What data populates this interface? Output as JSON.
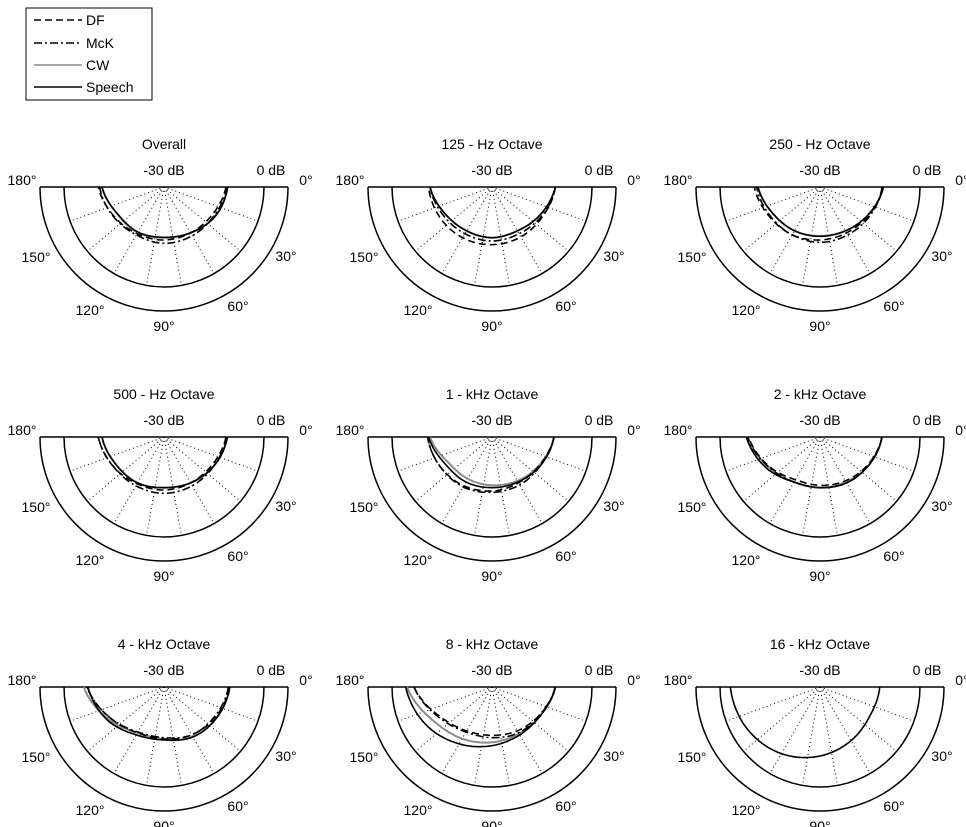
{
  "legend": {
    "entries": [
      {
        "label": "DF",
        "style": "dashed",
        "color": "#000000"
      },
      {
        "label": "McK",
        "style": "dashdot",
        "color": "#000000"
      },
      {
        "label": "CW",
        "style": "solid",
        "color": "#8c8c8c"
      },
      {
        "label": "Speech",
        "style": "solid",
        "color": "#000000"
      }
    ]
  },
  "axis_labels": {
    "inner_ring": "-30 dB",
    "outer_ring": "0 dB",
    "angles": [
      "0°",
      "30°",
      "60°",
      "90°",
      "120°",
      "150°",
      "180°"
    ]
  },
  "chart_data": [
    {
      "type": "polar",
      "title": "Overall",
      "r_unit": "dB",
      "r_range": [
        -30,
        0
      ],
      "theta": [
        0,
        30,
        60,
        90,
        120,
        150,
        180
      ],
      "series": [
        {
          "name": "DF",
          "values": [
            -11.4,
            -13.3,
            -14.1,
            -14.1,
            -13.8,
            -12.6,
            -10.3
          ]
        },
        {
          "name": "McK",
          "values": [
            -11.0,
            -12.7,
            -13.1,
            -13.1,
            -13.4,
            -12.4,
            -10.7
          ]
        },
        {
          "name": "CW",
          "values": [
            -11.0,
            -12.4,
            -14.1,
            -14.8,
            -14.2,
            -13.8,
            -11.4
          ]
        },
        {
          "name": "Speech",
          "values": [
            -10.9,
            -12.3,
            -14.1,
            -14.9,
            -14.4,
            -13.9,
            -11.4
          ]
        }
      ]
    },
    {
      "type": "polar",
      "title": "125 - Hz  Octave",
      "r_unit": "dB",
      "r_range": [
        -30,
        0
      ],
      "theta": [
        0,
        30,
        60,
        90,
        120,
        150,
        180
      ],
      "series": [
        {
          "name": "DF",
          "values": [
            -11.0,
            -12.4,
            -12.7,
            -12.7,
            -12.4,
            -11.9,
            -11.0
          ]
        },
        {
          "name": "McK",
          "values": [
            -11.0,
            -12.7,
            -13.8,
            -13.8,
            -13.8,
            -13.1,
            -11.4
          ]
        },
        {
          "name": "CW",
          "values": [
            -11.0,
            -13.3,
            -14.8,
            -14.8,
            -14.8,
            -13.8,
            -11.4
          ]
        },
        {
          "name": "Speech",
          "values": [
            -11.0,
            -13.3,
            -14.8,
            -14.8,
            -14.8,
            -13.8,
            -11.4
          ]
        }
      ]
    },
    {
      "type": "polar",
      "title": "250 - Hz  Octave",
      "r_unit": "dB",
      "r_range": [
        -30,
        0
      ],
      "theta": [
        0,
        30,
        60,
        90,
        120,
        150,
        180
      ],
      "series": [
        {
          "name": "DF",
          "values": [
            -11.0,
            -13.1,
            -14.1,
            -14.1,
            -13.4,
            -12.4,
            -10.3
          ]
        },
        {
          "name": "McK",
          "values": [
            -11.4,
            -12.7,
            -13.4,
            -13.4,
            -13.4,
            -12.7,
            -11.0
          ]
        },
        {
          "name": "CW",
          "values": [
            -11.0,
            -13.3,
            -14.8,
            -15.3,
            -14.8,
            -13.8,
            -11.4
          ]
        },
        {
          "name": "Speech",
          "values": [
            -11.0,
            -13.3,
            -14.8,
            -15.2,
            -14.8,
            -13.8,
            -11.4
          ]
        }
      ]
    },
    {
      "type": "polar",
      "title": "500 - Hz  Octave",
      "r_unit": "dB",
      "r_range": [
        -30,
        0
      ],
      "theta": [
        0,
        30,
        60,
        90,
        120,
        150,
        180
      ],
      "series": [
        {
          "name": "DF",
          "values": [
            -11.4,
            -13.3,
            -14.1,
            -14.1,
            -13.8,
            -12.4,
            -10.3
          ]
        },
        {
          "name": "McK",
          "values": [
            -11.4,
            -12.7,
            -13.1,
            -13.1,
            -13.1,
            -12.4,
            -10.3
          ]
        },
        {
          "name": "CW",
          "values": [
            -11.0,
            -12.7,
            -14.1,
            -14.8,
            -14.1,
            -13.4,
            -11.4
          ]
        },
        {
          "name": "Speech",
          "values": [
            -11.0,
            -12.7,
            -14.1,
            -14.8,
            -14.1,
            -13.4,
            -11.4
          ]
        }
      ]
    },
    {
      "type": "polar",
      "title": "1 - kHz  Octave",
      "r_unit": "dB",
      "r_range": [
        -30,
        0
      ],
      "theta": [
        0,
        30,
        60,
        90,
        120,
        150,
        180
      ],
      "series": [
        {
          "name": "DF",
          "values": [
            -11.4,
            -13.4,
            -14.1,
            -13.8,
            -13.1,
            -12.1,
            -10.7
          ]
        },
        {
          "name": "McK",
          "values": [
            -11.4,
            -13.1,
            -13.4,
            -13.4,
            -12.7,
            -12.1,
            -10.7
          ]
        },
        {
          "name": "CW",
          "values": [
            -11.4,
            -13.4,
            -14.8,
            -15.5,
            -15.5,
            -14.8,
            -11.4
          ]
        },
        {
          "name": "Speech",
          "values": [
            -11.4,
            -13.1,
            -14.4,
            -14.8,
            -14.4,
            -13.8,
            -11.0
          ]
        }
      ]
    },
    {
      "type": "polar",
      "title": "2 - kHz  Octave",
      "r_unit": "dB",
      "r_range": [
        -30,
        0
      ],
      "theta": [
        0,
        30,
        60,
        90,
        120,
        150,
        180
      ],
      "series": [
        {
          "name": "DF",
          "values": [
            -11.4,
            -13.4,
            -14.8,
            -15.5,
            -15.2,
            -12.4,
            -8.6
          ]
        },
        {
          "name": "McK",
          "values": [
            -11.4,
            -13.1,
            -14.1,
            -14.8,
            -14.4,
            -12.1,
            -8.3
          ]
        },
        {
          "name": "CW",
          "values": [
            -11.4,
            -13.1,
            -14.4,
            -14.8,
            -14.4,
            -12.1,
            -8.3
          ]
        },
        {
          "name": "Speech",
          "values": [
            -11.4,
            -13.1,
            -14.1,
            -14.8,
            -14.4,
            -11.4,
            -7.9
          ]
        }
      ]
    },
    {
      "type": "polar",
      "title": "4 - kHz  Octave",
      "r_unit": "dB",
      "r_range": [
        -30,
        0
      ],
      "theta": [
        0,
        30,
        60,
        90,
        120,
        150,
        180
      ],
      "series": [
        {
          "name": "DF",
          "values": [
            -10.3,
            -12.1,
            -13.4,
            -14.4,
            -14.1,
            -11.4,
            -6.9
          ]
        },
        {
          "name": "McK",
          "values": [
            -10.7,
            -12.4,
            -13.4,
            -14.8,
            -14.4,
            -11.4,
            -6.9
          ]
        },
        {
          "name": "CW",
          "values": [
            -10.3,
            -11.7,
            -12.7,
            -14.4,
            -14.1,
            -10.7,
            -5.9
          ]
        },
        {
          "name": "Speech",
          "values": [
            -10.3,
            -11.7,
            -12.7,
            -14.1,
            -13.4,
            -10.3,
            -7.2
          ]
        }
      ]
    },
    {
      "type": "polar",
      "title": "8 - kHz  Octave",
      "r_unit": "dB",
      "r_range": [
        -30,
        0
      ],
      "theta": [
        0,
        30,
        60,
        90,
        120,
        150,
        180
      ],
      "series": [
        {
          "name": "DF",
          "values": [
            -11.0,
            -13.4,
            -14.8,
            -15.5,
            -14.8,
            -12.1,
            -6.6
          ]
        },
        {
          "name": "McK",
          "values": [
            -11.0,
            -13.4,
            -14.1,
            -14.8,
            -14.4,
            -11.7,
            -6.6
          ]
        },
        {
          "name": "CW",
          "values": [
            -11.0,
            -13.1,
            -13.8,
            -13.4,
            -12.1,
            -9.7,
            -4.5
          ]
        },
        {
          "name": "Speech",
          "values": [
            -11.0,
            -13.1,
            -13.4,
            -12.4,
            -10.3,
            -7.2,
            -4.1
          ]
        }
      ]
    },
    {
      "type": "polar",
      "title": "16 - kHz  Octave",
      "r_unit": "dB",
      "r_range": [
        -30,
        0
      ],
      "theta": [
        0,
        30,
        60,
        90,
        120,
        150,
        180
      ],
      "series": [
        {
          "name": "Speech",
          "values": [
            -12.1,
            -12.7,
            -11.4,
            -9.3,
            -6.9,
            -4.8,
            -3.1
          ]
        }
      ]
    }
  ]
}
